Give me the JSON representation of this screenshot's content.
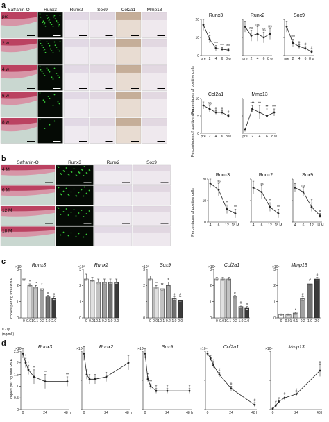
{
  "panels": {
    "a": {
      "label": "a",
      "columns": [
        "Safranin-O",
        "Runx3",
        "Runx2",
        "Sox9",
        "Col2a1",
        "Mmp13"
      ],
      "rows": [
        "pre",
        "2 w",
        "4 w",
        "6 w",
        "8 w"
      ],
      "ylabel_cells": "Percentages of positive cells",
      "ylabel_areas": "Percentages of positive areas"
    },
    "b": {
      "label": "b",
      "columns": [
        "Safranin-O",
        "Runx3",
        "Runx2",
        "Sox9"
      ],
      "rows": [
        "4 M",
        "6 M",
        "12 M",
        "18 M"
      ],
      "ylabel": "Percentages of positive cells"
    },
    "c": {
      "label": "c",
      "ylabel": "copies per ng  total RNA",
      "xlabel": "IL-1β\n(ng/mL)"
    },
    "d": {
      "label": "d",
      "ylabel": "copies per ng  total RNA"
    }
  },
  "chart_data": [
    {
      "id": "a1",
      "type": "line",
      "title": "Runx3",
      "categories": [
        "pre",
        "2",
        "4",
        "6",
        "8 w"
      ],
      "values": [
        17,
        9,
        4,
        3.5,
        3
      ],
      "errors": [
        3,
        2,
        1.5,
        1,
        1
      ],
      "sig": [
        "",
        "*",
        "***",
        "***",
        "***"
      ],
      "ylim": [
        0,
        20
      ]
    },
    {
      "id": "a2",
      "type": "line",
      "title": "Runx2",
      "categories": [
        "pre",
        "2",
        "4",
        "6",
        "8 w"
      ],
      "values": [
        16,
        11,
        12,
        10,
        12
      ],
      "errors": [
        3,
        3,
        4,
        3,
        3
      ],
      "sig": [
        "",
        "ns",
        "ns",
        "ns",
        "ns"
      ],
      "ylim": [
        0,
        20
      ]
    },
    {
      "id": "a3",
      "type": "line",
      "title": "Sox9",
      "categories": [
        "pre",
        "2",
        "4",
        "6",
        "8 w"
      ],
      "values": [
        16,
        7,
        5,
        4,
        2
      ],
      "errors": [
        3,
        2,
        1,
        1,
        1
      ],
      "sig": [
        "",
        "***",
        "#",
        "#",
        "#"
      ],
      "ylim": [
        0,
        20
      ]
    },
    {
      "id": "a4",
      "type": "line",
      "title": "Col2a1",
      "categories": [
        "pre",
        "2",
        "4",
        "6",
        "8 w"
      ],
      "values": [
        8,
        7,
        6,
        6,
        5
      ],
      "errors": [
        1,
        1,
        0.5,
        0.5,
        0.5
      ],
      "sig": [
        "",
        "ns",
        "#",
        "#",
        "#"
      ],
      "ylim": [
        0,
        10
      ]
    },
    {
      "id": "a5",
      "type": "line",
      "title": "Mmp13",
      "categories": [
        "pre",
        "2",
        "4",
        "6",
        "8 w"
      ],
      "values": [
        1,
        7,
        6,
        5,
        6
      ],
      "errors": [
        0.5,
        1,
        2,
        2,
        1
      ],
      "sig": [
        "",
        "***",
        "**",
        "**",
        "***"
      ],
      "ylim": [
        0,
        10
      ]
    },
    {
      "id": "b1",
      "type": "line",
      "title": "Runx3",
      "categories": [
        "4",
        "6",
        "12",
        "18 M"
      ],
      "values": [
        18,
        15,
        6,
        4
      ],
      "errors": [
        2,
        3,
        2,
        2
      ],
      "sig": [
        "",
        "ns",
        "*",
        "**"
      ],
      "ylim": [
        0,
        20
      ],
      "yticks": [
        0,
        10,
        20
      ]
    },
    {
      "id": "b2",
      "type": "line",
      "title": "Runx2",
      "categories": [
        "4",
        "6",
        "12",
        "18 M"
      ],
      "values": [
        16,
        14,
        7,
        4
      ],
      "errors": [
        3,
        3,
        2,
        2
      ],
      "sig": [
        "",
        "ns",
        "*",
        "**"
      ],
      "ylim": [
        0,
        20
      ]
    },
    {
      "id": "b3",
      "type": "line",
      "title": "Sox9",
      "categories": [
        "4",
        "6",
        "12",
        "18 M"
      ],
      "values": [
        16,
        14,
        7,
        3
      ],
      "errors": [
        2,
        2,
        2,
        1
      ],
      "sig": [
        "",
        "ns",
        "#",
        "#"
      ],
      "ylim": [
        0,
        20
      ]
    },
    {
      "id": "c1",
      "type": "bar",
      "title": "Runx3",
      "scale": "×10²",
      "categories": [
        "0",
        "0.01",
        "0.1",
        "0.2",
        "1.0",
        "2.0"
      ],
      "values": [
        2.4,
        2.0,
        1.9,
        1.8,
        1.3,
        1.2
      ],
      "errors": [
        0.2,
        0.1,
        0.1,
        0.1,
        0.1,
        0.1
      ],
      "sig": [
        "",
        "*",
        "**",
        "*",
        "#",
        "#"
      ],
      "ylim": [
        0,
        3
      ],
      "yticks": [
        0,
        1,
        2,
        3
      ]
    },
    {
      "id": "c2",
      "type": "bar",
      "title": "Runx2",
      "scale": "×10²",
      "categories": [
        "0",
        "0.01",
        "0.1",
        "0.2",
        "1.0",
        "2.0"
      ],
      "values": [
        2.4,
        2.3,
        2.2,
        2.2,
        2.2,
        2.2
      ],
      "errors": [
        0.3,
        0.2,
        0.2,
        0.2,
        0.2,
        0.2
      ],
      "sig": [
        "",
        "",
        "",
        "",
        "",
        ""
      ],
      "ylim": [
        0,
        3
      ],
      "yticks": [
        0,
        1,
        2,
        3
      ]
    },
    {
      "id": "c3",
      "type": "bar",
      "title": "Sox9",
      "scale": "×10²",
      "categories": [
        "0",
        "0.01",
        "0.1",
        "0.2",
        "1.0",
        "2.0"
      ],
      "values": [
        2.4,
        1.9,
        1.8,
        2.0,
        1.2,
        1.1
      ],
      "errors": [
        0.2,
        0.1,
        0.1,
        0.2,
        0.1,
        0.2
      ],
      "sig": [
        "",
        "**",
        "**",
        "*",
        "#",
        "#"
      ],
      "ylim": [
        0,
        3
      ],
      "yticks": [
        0,
        1,
        2,
        3
      ]
    },
    {
      "id": "c4",
      "type": "bar",
      "title": "Col2a1",
      "scale": "×10⁵",
      "categories": [
        "0",
        "0.01",
        "0.1",
        "0.2",
        "1.0",
        "2.0"
      ],
      "values": [
        2.4,
        2.4,
        2.4,
        1.3,
        0.7,
        0.6
      ],
      "errors": [
        0.1,
        0.1,
        0.1,
        0.1,
        0.1,
        0.1
      ],
      "sig": [
        "",
        "",
        "",
        "#",
        "#",
        "#"
      ],
      "ylim": [
        0,
        3
      ],
      "yticks": [
        0,
        1,
        2,
        3
      ]
    },
    {
      "id": "c5",
      "type": "bar",
      "title": "Mmp13",
      "scale": "×10⁴",
      "categories": [
        "0",
        "0.01",
        "0.1",
        "0.2",
        "1.0",
        "2.0"
      ],
      "values": [
        0.2,
        0.2,
        0.3,
        1.2,
        2.1,
        2.4
      ],
      "errors": [
        0.05,
        0.05,
        0.05,
        0.1,
        0.1,
        0.1
      ],
      "sig": [
        "",
        "",
        "*",
        "#",
        "#",
        "#"
      ],
      "ylim": [
        0,
        3
      ],
      "yticks": [
        0,
        1,
        2,
        3
      ]
    },
    {
      "id": "d1",
      "type": "line",
      "title": "Runx3",
      "scale": "×10²",
      "x": [
        0,
        3,
        6,
        12,
        24,
        48
      ],
      "values": [
        2.4,
        2.0,
        1.7,
        1.4,
        1.2,
        1.2
      ],
      "errors": [
        0.2,
        0.2,
        0.2,
        0.3,
        0.3,
        0.2
      ],
      "sig": [
        "",
        "*",
        "*",
        "**",
        "**",
        "**"
      ],
      "xticks": [
        "0",
        "24",
        "48 h"
      ],
      "ylim": [
        0,
        2.5
      ],
      "yticks": [
        0,
        0.5,
        1,
        1.5,
        2,
        2.5
      ]
    },
    {
      "id": "d2",
      "type": "line",
      "title": "Runx2",
      "scale": "×10²",
      "x": [
        0,
        3,
        6,
        12,
        24,
        48
      ],
      "values": [
        2.4,
        1.5,
        1.3,
        1.3,
        1.4,
        2.0
      ],
      "errors": [
        0.3,
        0.2,
        0.2,
        0.2,
        0.2,
        0.3
      ],
      "sig": [
        "",
        "",
        "",
        "",
        "",
        ""
      ],
      "xticks": [
        "0",
        "24",
        "48 h"
      ],
      "ylim": [
        0,
        2.5
      ]
    },
    {
      "id": "d3",
      "type": "line",
      "title": "Sox9",
      "scale": "×10²",
      "x": [
        0,
        3,
        6,
        12,
        24,
        48
      ],
      "values": [
        2.4,
        1.3,
        1.0,
        0.8,
        0.8,
        0.8
      ],
      "errors": [
        0.2,
        0.1,
        0.1,
        0.1,
        0.1,
        0.1
      ],
      "sig": [
        "",
        "*",
        "**",
        "#",
        "#",
        "#"
      ],
      "xticks": [
        "0",
        "24",
        "48 h"
      ],
      "ylim": [
        0,
        2.5
      ]
    },
    {
      "id": "d4",
      "type": "line",
      "title": "Col2a1",
      "scale": "×10⁵",
      "x": [
        0,
        3,
        6,
        12,
        24,
        48
      ],
      "values": [
        2.4,
        2.2,
        1.9,
        1.5,
        0.9,
        0.2
      ],
      "errors": [
        0.1,
        0.1,
        0.1,
        0.1,
        0.1,
        0.1
      ],
      "sig": [
        "",
        "",
        "#",
        "#",
        "#",
        "#"
      ],
      "xticks": [
        "0",
        "24",
        "48 h"
      ],
      "ylim": [
        0,
        2.5
      ]
    },
    {
      "id": "d5",
      "type": "line",
      "title": "Mmp13",
      "scale": "×10⁴",
      "x": [
        0,
        3,
        6,
        12,
        24,
        48
      ],
      "values": [
        0.1,
        0.4,
        0.8,
        1.2,
        1.6,
        4.0
      ],
      "errors": [
        0.05,
        0.1,
        0.1,
        0.2,
        0.2,
        0.6
      ],
      "sig": [
        "",
        "#",
        "#",
        "#",
        "#",
        "#"
      ],
      "xticks": [
        "0",
        "24",
        "48 h"
      ],
      "ylim": [
        0,
        6
      ]
    }
  ]
}
